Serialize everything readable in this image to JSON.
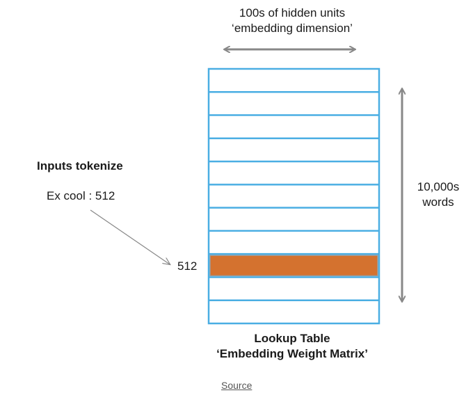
{
  "top_label": {
    "line1": "100s of hidden units",
    "line2": "‘embedding dimension’"
  },
  "side_label": {
    "line1": "10,000s",
    "line2": "words"
  },
  "inputs": {
    "heading": "Inputs tokenize",
    "example": "Ex cool : 512"
  },
  "row_label": "512",
  "table": {
    "rows": 11,
    "highlight_row_index": 8,
    "title_line1": "Lookup Table",
    "title_line2": "‘Embedding Weight Matrix’"
  },
  "caption": {
    "link_text": "Source"
  },
  "colors": {
    "grid": "#4aaee3",
    "highlight_fill": "#d4722f",
    "highlight_stroke": "#9a9a9a",
    "arrow": "#888888"
  }
}
